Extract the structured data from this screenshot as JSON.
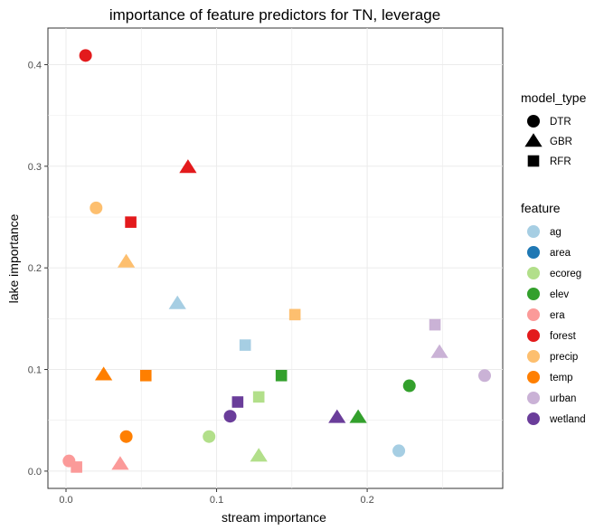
{
  "chart_data": {
    "type": "scatter",
    "title": "importance of feature predictors for TN, leverage",
    "xlabel": "stream importance",
    "ylabel": "lake importance",
    "xlim": [
      -0.012,
      0.29
    ],
    "ylim": [
      -0.017,
      0.436
    ],
    "x_ticks": [
      0.0,
      0.1,
      0.2
    ],
    "x_tick_labels": [
      "0.0",
      "0.1",
      "0.2"
    ],
    "y_ticks": [
      0.0,
      0.1,
      0.2,
      0.3,
      0.4
    ],
    "y_tick_labels": [
      "0.0",
      "0.1",
      "0.2",
      "0.3",
      "0.4"
    ],
    "grid": true,
    "legend_position": "right",
    "shape_legend": {
      "title": "model_type",
      "items": [
        {
          "label": "DTR",
          "shape": "circle"
        },
        {
          "label": "GBR",
          "shape": "triangle"
        },
        {
          "label": "RFR",
          "shape": "square"
        }
      ]
    },
    "color_legend": {
      "title": "feature",
      "items": [
        {
          "label": "ag",
          "color": "#A6CEE3"
        },
        {
          "label": "area",
          "color": "#1F78B4"
        },
        {
          "label": "ecoreg",
          "color": "#B2DF8A"
        },
        {
          "label": "elev",
          "color": "#33A02C"
        },
        {
          "label": "era",
          "color": "#FB9A99"
        },
        {
          "label": "forest",
          "color": "#E31A1C"
        },
        {
          "label": "precip",
          "color": "#FDBF6F"
        },
        {
          "label": "temp",
          "color": "#FF7F00"
        },
        {
          "label": "urban",
          "color": "#CAB2D6"
        },
        {
          "label": "wetland",
          "color": "#6A3D9A"
        }
      ]
    },
    "points": [
      {
        "feature": "forest",
        "model": "DTR",
        "x": 0.013,
        "y": 0.409
      },
      {
        "feature": "forest",
        "model": "GBR",
        "x": 0.081,
        "y": 0.299
      },
      {
        "feature": "precip",
        "model": "DTR",
        "x": 0.02,
        "y": 0.259
      },
      {
        "feature": "forest",
        "model": "RFR",
        "x": 0.043,
        "y": 0.245
      },
      {
        "feature": "precip",
        "model": "GBR",
        "x": 0.04,
        "y": 0.206
      },
      {
        "feature": "ag",
        "model": "GBR",
        "x": 0.074,
        "y": 0.165
      },
      {
        "feature": "precip",
        "model": "RFR",
        "x": 0.152,
        "y": 0.154
      },
      {
        "feature": "urban",
        "model": "RFR",
        "x": 0.245,
        "y": 0.144
      },
      {
        "feature": "ag",
        "model": "RFR",
        "x": 0.119,
        "y": 0.124
      },
      {
        "feature": "urban",
        "model": "GBR",
        "x": 0.248,
        "y": 0.117
      },
      {
        "feature": "temp",
        "model": "GBR",
        "x": 0.025,
        "y": 0.095
      },
      {
        "feature": "temp",
        "model": "RFR",
        "x": 0.053,
        "y": 0.094
      },
      {
        "feature": "elev",
        "model": "RFR",
        "x": 0.143,
        "y": 0.094
      },
      {
        "feature": "urban",
        "model": "DTR",
        "x": 0.278,
        "y": 0.094
      },
      {
        "feature": "elev",
        "model": "DTR",
        "x": 0.228,
        "y": 0.084
      },
      {
        "feature": "ecoreg",
        "model": "RFR",
        "x": 0.128,
        "y": 0.073
      },
      {
        "feature": "wetland",
        "model": "RFR",
        "x": 0.114,
        "y": 0.068
      },
      {
        "feature": "wetland",
        "model": "DTR",
        "x": 0.109,
        "y": 0.054
      },
      {
        "feature": "wetland",
        "model": "GBR",
        "x": 0.18,
        "y": 0.053
      },
      {
        "feature": "elev",
        "model": "GBR",
        "x": 0.194,
        "y": 0.053
      },
      {
        "feature": "temp",
        "model": "DTR",
        "x": 0.04,
        "y": 0.034
      },
      {
        "feature": "ecoreg",
        "model": "DTR",
        "x": 0.095,
        "y": 0.034
      },
      {
        "feature": "ag",
        "model": "DTR",
        "x": 0.221,
        "y": 0.02
      },
      {
        "feature": "ecoreg",
        "model": "GBR",
        "x": 0.128,
        "y": 0.015
      },
      {
        "feature": "era",
        "model": "DTR",
        "x": 0.002,
        "y": 0.01
      },
      {
        "feature": "era",
        "model": "GBR",
        "x": 0.036,
        "y": 0.007
      },
      {
        "feature": "era",
        "model": "RFR",
        "x": 0.007,
        "y": 0.004
      }
    ]
  }
}
